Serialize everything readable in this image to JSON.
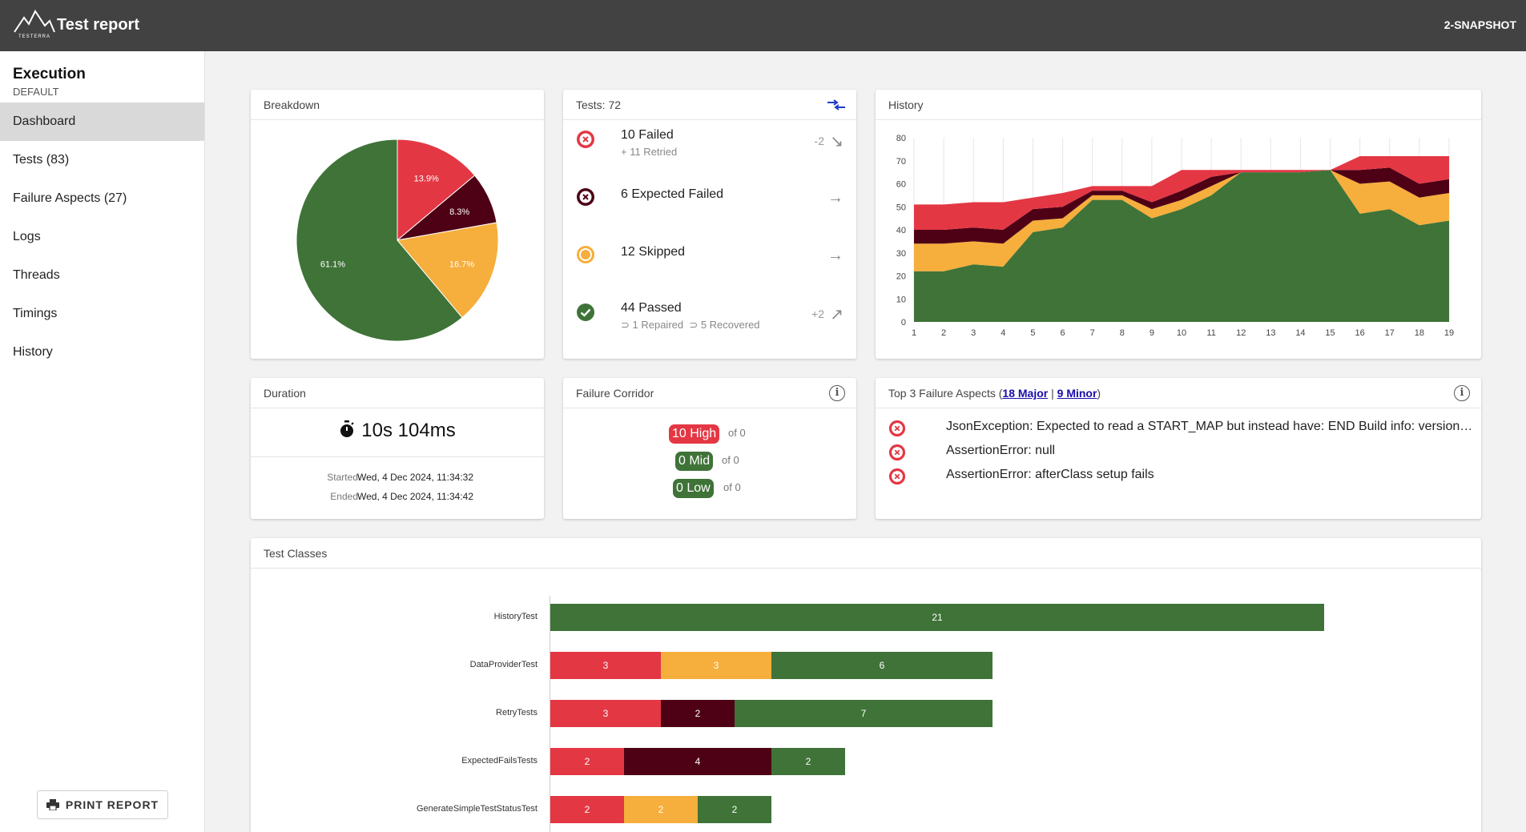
{
  "header": {
    "title": "Test report",
    "version": "2-SNAPSHOT"
  },
  "sidebar": {
    "title": "Execution",
    "subtitle": "DEFAULT",
    "items": [
      {
        "label": "Dashboard",
        "active": true
      },
      {
        "label": "Tests (83)"
      },
      {
        "label": "Failure Aspects (27)"
      },
      {
        "label": "Logs"
      },
      {
        "label": "Threads"
      },
      {
        "label": "Timings"
      },
      {
        "label": "History"
      }
    ],
    "print_label": "PRINT REPORT"
  },
  "colors": {
    "failed": "#e43744",
    "expected_failed": "#4e0015",
    "skipped": "#f6ae3c",
    "passed": "#3f7338"
  },
  "breakdown": {
    "title": "Breakdown",
    "chart_data": {
      "type": "pie",
      "slices": [
        {
          "label": "13.9%",
          "value": 13.9,
          "color": "#e43744"
        },
        {
          "label": "8.3%",
          "value": 8.3,
          "color": "#4e0015"
        },
        {
          "label": "16.7%",
          "value": 16.7,
          "color": "#f6ae3c"
        },
        {
          "label": "61.1%",
          "value": 61.1,
          "color": "#3f7338"
        }
      ]
    }
  },
  "tests": {
    "title": "Tests: 72",
    "rows": [
      {
        "label": "10 Failed",
        "sub": "+ 11 Retried",
        "delta": "-2",
        "arrow": "↘",
        "icon": "failed-icon"
      },
      {
        "label": "6 Expected Failed",
        "sub": "",
        "delta": "",
        "arrow": "→",
        "icon": "expected-failed-icon"
      },
      {
        "label": "12 Skipped",
        "sub": "",
        "delta": "",
        "arrow": "→",
        "icon": "skipped-icon"
      },
      {
        "label": "44 Passed",
        "sub": "⊃ 1 Repaired  ⊃ 5 Recovered",
        "delta": "+2",
        "arrow": "↗",
        "icon": "passed-icon"
      }
    ]
  },
  "history": {
    "title": "History",
    "chart_data": {
      "type": "area",
      "stacked": true,
      "x": [
        1,
        2,
        3,
        4,
        5,
        6,
        7,
        8,
        9,
        10,
        11,
        12,
        13,
        14,
        15,
        16,
        17,
        18,
        19
      ],
      "ylim": [
        0,
        80
      ],
      "yticks": [
        0,
        10,
        20,
        30,
        40,
        50,
        60,
        70,
        80
      ],
      "series": [
        {
          "values": [
            22,
            22,
            25,
            24,
            39,
            41,
            53,
            53,
            45,
            49,
            55,
            65,
            65,
            65,
            66,
            47,
            49,
            42,
            44
          ],
          "color": "#3f7338"
        },
        {
          "values": [
            12,
            12,
            10,
            10,
            5,
            4,
            2,
            2,
            4,
            4,
            4,
            0,
            0,
            0,
            0,
            13,
            12,
            12,
            12
          ],
          "color": "#f6ae3c"
        },
        {
          "values": [
            6,
            6,
            6,
            6,
            5,
            5,
            2,
            2,
            3,
            4,
            4,
            0,
            0,
            0,
            0,
            6,
            6,
            6,
            6
          ],
          "color": "#4e0015"
        },
        {
          "values": [
            11,
            11,
            11,
            12,
            5,
            6,
            2,
            2,
            7,
            9,
            3,
            1,
            1,
            1,
            0,
            6,
            5,
            12,
            10
          ],
          "color": "#e43744"
        }
      ]
    }
  },
  "duration": {
    "title": "Duration",
    "total": "10s 104ms",
    "started_label": "Started",
    "started": "Wed, 4 Dec 2024, 11:34:32",
    "ended_label": "Ended",
    "ended": "Wed, 4 Dec 2024, 11:34:42"
  },
  "corridor": {
    "title": "Failure Corridor",
    "rows": [
      {
        "badge": "10 High",
        "of": "of 0",
        "color": "#e43744"
      },
      {
        "badge": "0 Mid",
        "of": "of 0",
        "color": "#3f7338"
      },
      {
        "badge": "0 Low",
        "of": "of 0",
        "color": "#3f7338"
      }
    ]
  },
  "failure_aspects": {
    "title_prefix": "Top 3 Failure Aspects (",
    "major": "18 Major",
    "separator": " | ",
    "minor": "9 Minor",
    "title_suffix": ")",
    "items": [
      "JsonException: Expected to read a START_MAP but instead have: END Build info: version: '...",
      "AssertionError: null",
      "AssertionError: afterClass setup fails"
    ]
  },
  "classes": {
    "title": "Test Classes",
    "chart_data": {
      "type": "bar",
      "orientation": "horizontal",
      "stacked": true,
      "categories": [
        "HistoryTest",
        "DataProviderTest",
        "RetryTests",
        "ExpectedFailsTests",
        "GenerateSimpleTestStatusTest"
      ],
      "series": [
        {
          "values": [
            0,
            3,
            3,
            2,
            2
          ],
          "color": "#e43744"
        },
        {
          "values": [
            0,
            0,
            2,
            4,
            0
          ],
          "color": "#4e0015"
        },
        {
          "values": [
            0,
            3,
            0,
            0,
            2
          ],
          "color": "#f6ae3c"
        },
        {
          "values": [
            21,
            6,
            7,
            2,
            2
          ],
          "color": "#3f7338"
        }
      ]
    }
  }
}
